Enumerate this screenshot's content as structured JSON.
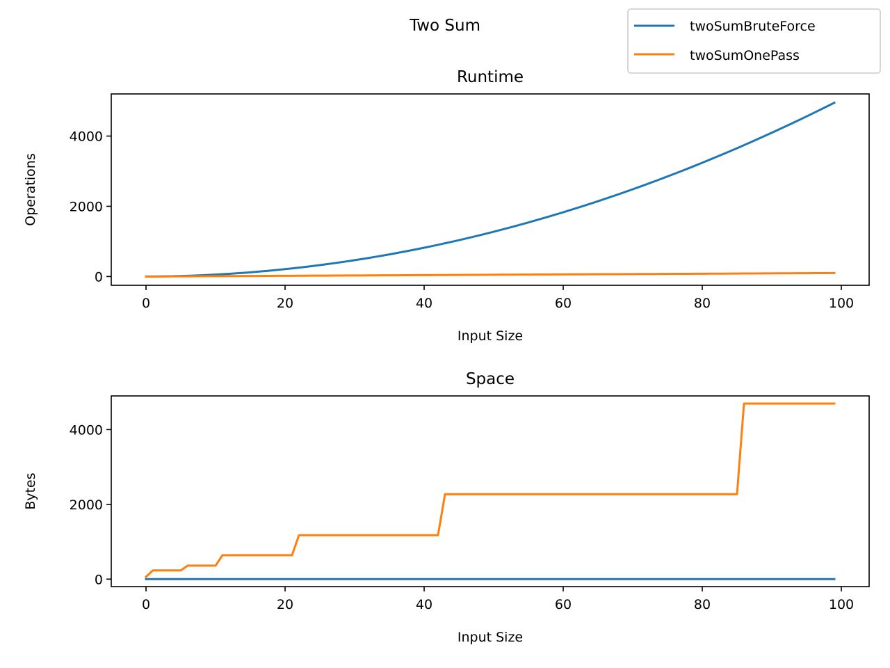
{
  "figure": {
    "suptitle": "Two Sum"
  },
  "legend": {
    "placement": "upper-right",
    "entries": [
      {
        "name": "twoSumBruteForce",
        "color": "#1f77b4"
      },
      {
        "name": "twoSumOnePass",
        "color": "#ff7f0e"
      }
    ]
  },
  "chart_data": [
    {
      "type": "line",
      "title": "Runtime",
      "xlabel": "Input Size",
      "ylabel": "Operations",
      "xlim": [
        -5,
        104
      ],
      "ylim": [
        -250,
        5200
      ],
      "xticks": [
        0,
        20,
        40,
        60,
        80,
        100
      ],
      "yticks": [
        0,
        2000,
        4000
      ],
      "grid": false,
      "series": [
        {
          "name": "twoSumBruteForce",
          "color": "#1f77b4",
          "formula": "x*(x+1)/2",
          "x_range": [
            0,
            99
          ]
        },
        {
          "name": "twoSumOnePass",
          "color": "#ff7f0e",
          "formula": "x",
          "x_range": [
            0,
            99
          ]
        }
      ]
    },
    {
      "type": "line",
      "title": "Space",
      "xlabel": "Input Size",
      "ylabel": "Bytes",
      "xlim": [
        -5,
        104
      ],
      "ylim": [
        -200,
        4900
      ],
      "xticks": [
        0,
        20,
        40,
        60,
        80,
        100
      ],
      "yticks": [
        0,
        2000,
        4000
      ],
      "grid": false,
      "series": [
        {
          "name": "twoSumBruteForce",
          "color": "#1f77b4",
          "x": [
            0,
            99
          ],
          "y": [
            0,
            0
          ]
        },
        {
          "name": "twoSumOnePass",
          "color": "#ff7f0e",
          "x": [
            0,
            1,
            5,
            6,
            10,
            11,
            21,
            22,
            42,
            43,
            85,
            86,
            99
          ],
          "y": [
            64,
            232,
            232,
            360,
            360,
            640,
            640,
            1176,
            1176,
            2272,
            2272,
            4696,
            4696
          ]
        }
      ]
    }
  ]
}
